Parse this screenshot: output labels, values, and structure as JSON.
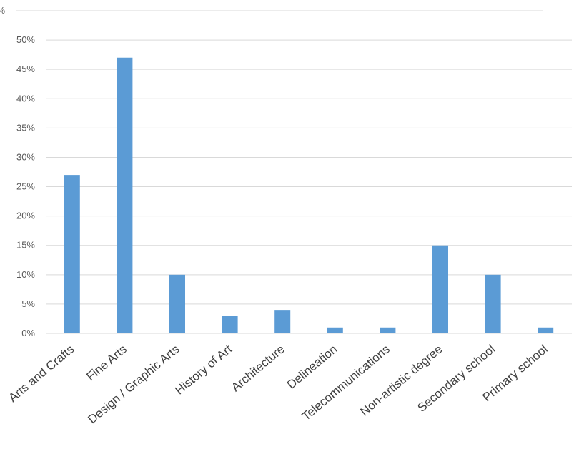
{
  "chart_data": {
    "type": "bar",
    "categories": [
      "Arts and Crafts",
      "Fine Arts",
      "Design / Graphic Arts",
      "History of Art",
      "Architecture",
      "Delineation",
      "Telecommunications",
      "Non-artistic degree",
      "Secondary school",
      "Primary school"
    ],
    "series": [
      {
        "values": [
          27,
          47,
          10,
          3,
          4,
          1,
          1,
          15,
          10,
          1
        ]
      }
    ],
    "y_ticks": [
      "0%",
      "5%",
      "10%",
      "15%",
      "20%",
      "25%",
      "30%",
      "35%",
      "40%",
      "45%",
      "50%",
      "%"
    ],
    "ylim": [
      0,
      55
    ],
    "grid": true,
    "colors": {
      "bar": "#5b9bd5",
      "grid": "#d9d9d9"
    }
  }
}
